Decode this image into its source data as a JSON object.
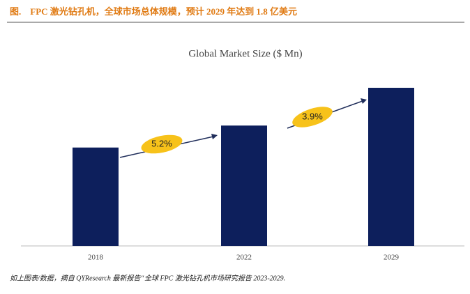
{
  "header": "图.    FPC 激光钻孔机，全球市场总体规模，预计 2029 年达到 1.8 亿美元",
  "chart_data": {
    "type": "bar",
    "title": "Global Market Size ($ Mn)",
    "categories": [
      "2018",
      "2022",
      "2029"
    ],
    "values": [
      112,
      137,
      180
    ],
    "color": "#0d1f5c",
    "annotations": [
      "5.2%",
      "3.9%"
    ]
  },
  "footer": "如上图表/数据，摘自 QYResearch 最新报告“全球 FPC 激光钻孔机市场研究报告 2023-2029."
}
